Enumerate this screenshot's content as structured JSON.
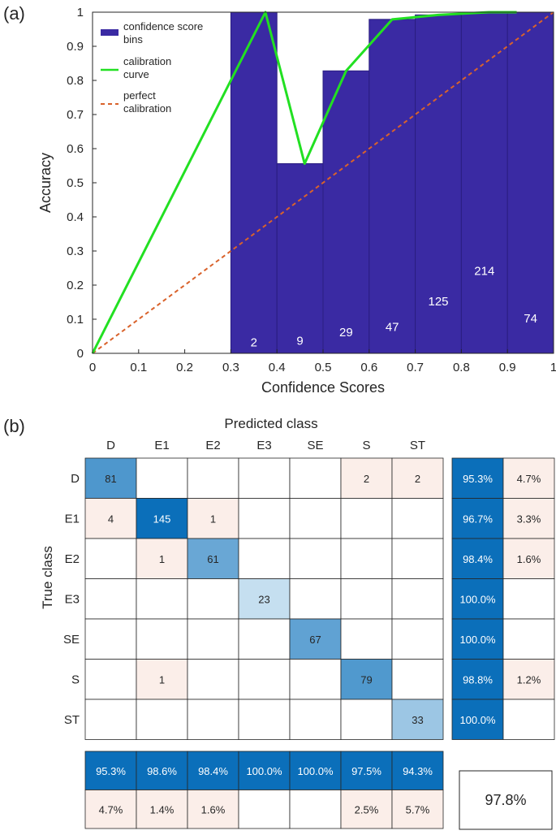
{
  "chart_data": [
    {
      "type": "bar",
      "panel_label": "(a)",
      "xlabel": "Confidence Scores",
      "ylabel": "Accuracy",
      "xlim": [
        0,
        1
      ],
      "ylim": [
        0,
        1
      ],
      "x_ticks": [
        "0",
        "0.1",
        "0.2",
        "0.3",
        "0.4",
        "0.5",
        "0.6",
        "0.7",
        "0.8",
        "0.9",
        "1"
      ],
      "y_ticks": [
        "0",
        "0.1",
        "0.2",
        "0.3",
        "0.4",
        "0.5",
        "0.6",
        "0.7",
        "0.8",
        "0.9",
        "1"
      ],
      "colors": {
        "bins": "#3a2aa3",
        "bin_edge": "#2a1d80",
        "calibration": "#22e022",
        "perfect": "#d9622b",
        "text": "#262626"
      },
      "bins": [
        {
          "start": 0.3,
          "end": 0.4,
          "accuracy": 1.0,
          "count": "2"
        },
        {
          "start": 0.4,
          "end": 0.5,
          "accuracy": 0.556,
          "count": "9"
        },
        {
          "start": 0.5,
          "end": 0.6,
          "accuracy": 0.828,
          "count": "29"
        },
        {
          "start": 0.6,
          "end": 0.7,
          "accuracy": 0.979,
          "count": "47"
        },
        {
          "start": 0.7,
          "end": 0.8,
          "accuracy": 0.992,
          "count": "125"
        },
        {
          "start": 0.8,
          "end": 0.9,
          "accuracy": 1.0,
          "count": "214"
        },
        {
          "start": 0.9,
          "end": 1.0,
          "accuracy": 1.0,
          "count": "74"
        }
      ],
      "count_label_heights": [
        0.02,
        0.025,
        0.05,
        0.065,
        0.14,
        0.23,
        0.09
      ],
      "calibration_curve": {
        "x": [
          0,
          0.375,
          0.46,
          0.55,
          0.65,
          0.75,
          0.86,
          0.92
        ],
        "y": [
          0,
          1.0,
          0.556,
          0.828,
          0.979,
          0.992,
          1.0,
          1.0
        ]
      },
      "perfect_calibration": {
        "x": [
          0,
          1
        ],
        "y": [
          0,
          1
        ]
      },
      "legend": {
        "position": "top-left",
        "entries": [
          "confidence score bins",
          "calibration curve",
          "perfect calibration"
        ]
      }
    },
    {
      "type": "heatmap",
      "panel_label": "(b)",
      "title": "Predicted class",
      "ylabel": "True class",
      "predicted_classes": [
        "D",
        "E1",
        "E2",
        "E3",
        "SE",
        "S",
        "ST"
      ],
      "true_classes": [
        "D",
        "E1",
        "E2",
        "E3",
        "SE",
        "S",
        "ST"
      ],
      "matrix": [
        [
          81,
          0,
          0,
          0,
          0,
          2,
          2
        ],
        [
          4,
          145,
          1,
          0,
          0,
          0,
          0
        ],
        [
          0,
          1,
          61,
          0,
          0,
          0,
          0
        ],
        [
          0,
          0,
          0,
          23,
          0,
          0,
          0
        ],
        [
          0,
          0,
          0,
          0,
          67,
          0,
          0
        ],
        [
          0,
          1,
          0,
          0,
          0,
          79,
          0
        ],
        [
          0,
          0,
          0,
          0,
          0,
          0,
          33
        ]
      ],
      "row_summary": [
        [
          "95.3%",
          "4.7%"
        ],
        [
          "96.7%",
          "3.3%"
        ],
        [
          "98.4%",
          "1.6%"
        ],
        [
          "100.0%",
          ""
        ],
        [
          "100.0%",
          ""
        ],
        [
          "98.8%",
          "1.2%"
        ],
        [
          "100.0%",
          ""
        ]
      ],
      "column_summary": [
        [
          "95.3%",
          "4.7%"
        ],
        [
          "98.6%",
          "1.4%"
        ],
        [
          "98.4%",
          "1.6%"
        ],
        [
          "100.0%",
          ""
        ],
        [
          "100.0%",
          ""
        ],
        [
          "97.5%",
          "2.5%"
        ],
        [
          "94.3%",
          "5.7%"
        ]
      ],
      "overall_accuracy": "97.8%",
      "colors": {
        "summary": "#0b6fba",
        "error": "#fbeee9",
        "diag_high": "#0b6fba",
        "diag_low": "#c5dff0",
        "grid": "#262626"
      }
    }
  ]
}
